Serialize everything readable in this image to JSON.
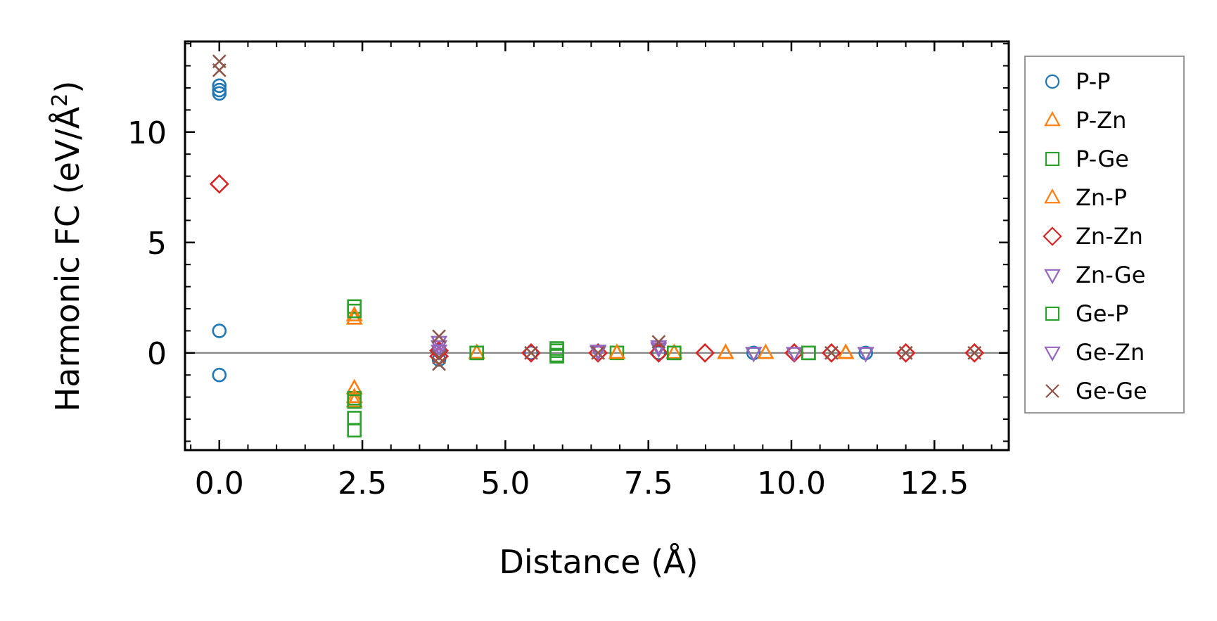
{
  "chart_data": {
    "type": "scatter",
    "xlabel": "Distance (Å)",
    "ylabel_main": "Harmonic FC (eV/Å",
    "ylabel_sup": "2",
    "ylabel_close": ")",
    "xlim": [
      -0.6,
      13.8
    ],
    "ylim": [
      -4.4,
      14.1
    ],
    "xticks": [
      0.0,
      2.5,
      5.0,
      7.5,
      10.0,
      12.5
    ],
    "xtick_labels": [
      "0.0",
      "2.5",
      "5.0",
      "7.5",
      "10.0",
      "12.5"
    ],
    "yticks": [
      0,
      5,
      10
    ],
    "ytick_labels": [
      "0",
      "5",
      "10"
    ],
    "zero_line": true,
    "grid": false,
    "legend_position": "right",
    "series": [
      {
        "name": "P-P",
        "marker": "circle",
        "color": "#1f77b4",
        "x": [
          0.0,
          0.0,
          0.0,
          0.0,
          0.0,
          3.84,
          3.84,
          5.45,
          7.68,
          9.34,
          11.3
        ],
        "y": [
          12.1,
          11.9,
          11.75,
          1.0,
          -1.0,
          -0.3,
          0.1,
          0.0,
          0.0,
          0.0,
          0.0
        ]
      },
      {
        "name": "P-Zn",
        "marker": "triangle-up",
        "color": "#ff7f0e",
        "x": [
          2.36,
          2.36,
          2.36,
          4.5,
          6.95,
          7.95,
          8.85,
          9.55,
          10.95
        ],
        "y": [
          1.55,
          -1.6,
          -2.2,
          0.0,
          0.0,
          0.0,
          0.0,
          0.0,
          0.0
        ]
      },
      {
        "name": "P-Ge",
        "marker": "square",
        "color": "#2ca02c",
        "x": [
          2.36,
          2.36,
          2.36,
          2.36,
          4.5,
          5.9,
          5.9,
          6.95,
          7.95,
          10.3
        ],
        "y": [
          2.1,
          -2.05,
          -2.95,
          -3.5,
          0.0,
          0.2,
          -0.1,
          0.0,
          0.0,
          0.0
        ]
      },
      {
        "name": "Zn-P",
        "marker": "triangle-up",
        "color": "#ff7f0e",
        "x": [
          2.36,
          2.36,
          4.5,
          6.95,
          8.85,
          10.95
        ],
        "y": [
          1.7,
          -2.0,
          0.0,
          0.0,
          0.0,
          0.0
        ]
      },
      {
        "name": "Zn-Zn",
        "marker": "diamond",
        "color": "#d62728",
        "x": [
          0.0,
          3.84,
          3.84,
          5.45,
          6.62,
          7.68,
          8.49,
          10.05,
          10.7,
          12.0,
          13.2
        ],
        "y": [
          7.65,
          0.1,
          -0.15,
          0.0,
          0.0,
          0.0,
          0.0,
          0.0,
          0.0,
          0.0,
          0.0
        ]
      },
      {
        "name": "Zn-Ge",
        "marker": "triangle-down",
        "color": "#9467bd",
        "x": [
          3.84,
          3.84,
          6.62,
          7.68,
          9.34,
          10.05,
          11.3
        ],
        "y": [
          0.5,
          0.1,
          0.1,
          0.3,
          0.0,
          0.0,
          0.0
        ]
      },
      {
        "name": "Ge-P",
        "marker": "square",
        "color": "#2ca02c",
        "x": [
          2.36,
          2.36,
          4.5,
          5.9,
          5.9,
          7.95,
          10.3
        ],
        "y": [
          1.9,
          -2.2,
          0.0,
          0.1,
          -0.15,
          0.0,
          0.0
        ]
      },
      {
        "name": "Ge-Zn",
        "marker": "triangle-down",
        "color": "#9467bd",
        "x": [
          3.84,
          6.62,
          7.68,
          9.34,
          11.3
        ],
        "y": [
          0.3,
          0.05,
          0.2,
          0.0,
          0.0
        ]
      },
      {
        "name": "Ge-Ge",
        "marker": "x",
        "color": "#8c564b",
        "x": [
          0.0,
          0.0,
          3.84,
          3.84,
          3.84,
          5.45,
          6.62,
          7.68,
          10.7,
          12.0,
          13.2
        ],
        "y": [
          13.2,
          12.8,
          0.75,
          -0.2,
          -0.5,
          0.0,
          0.0,
          0.5,
          0.0,
          0.0,
          0.0
        ]
      }
    ]
  }
}
